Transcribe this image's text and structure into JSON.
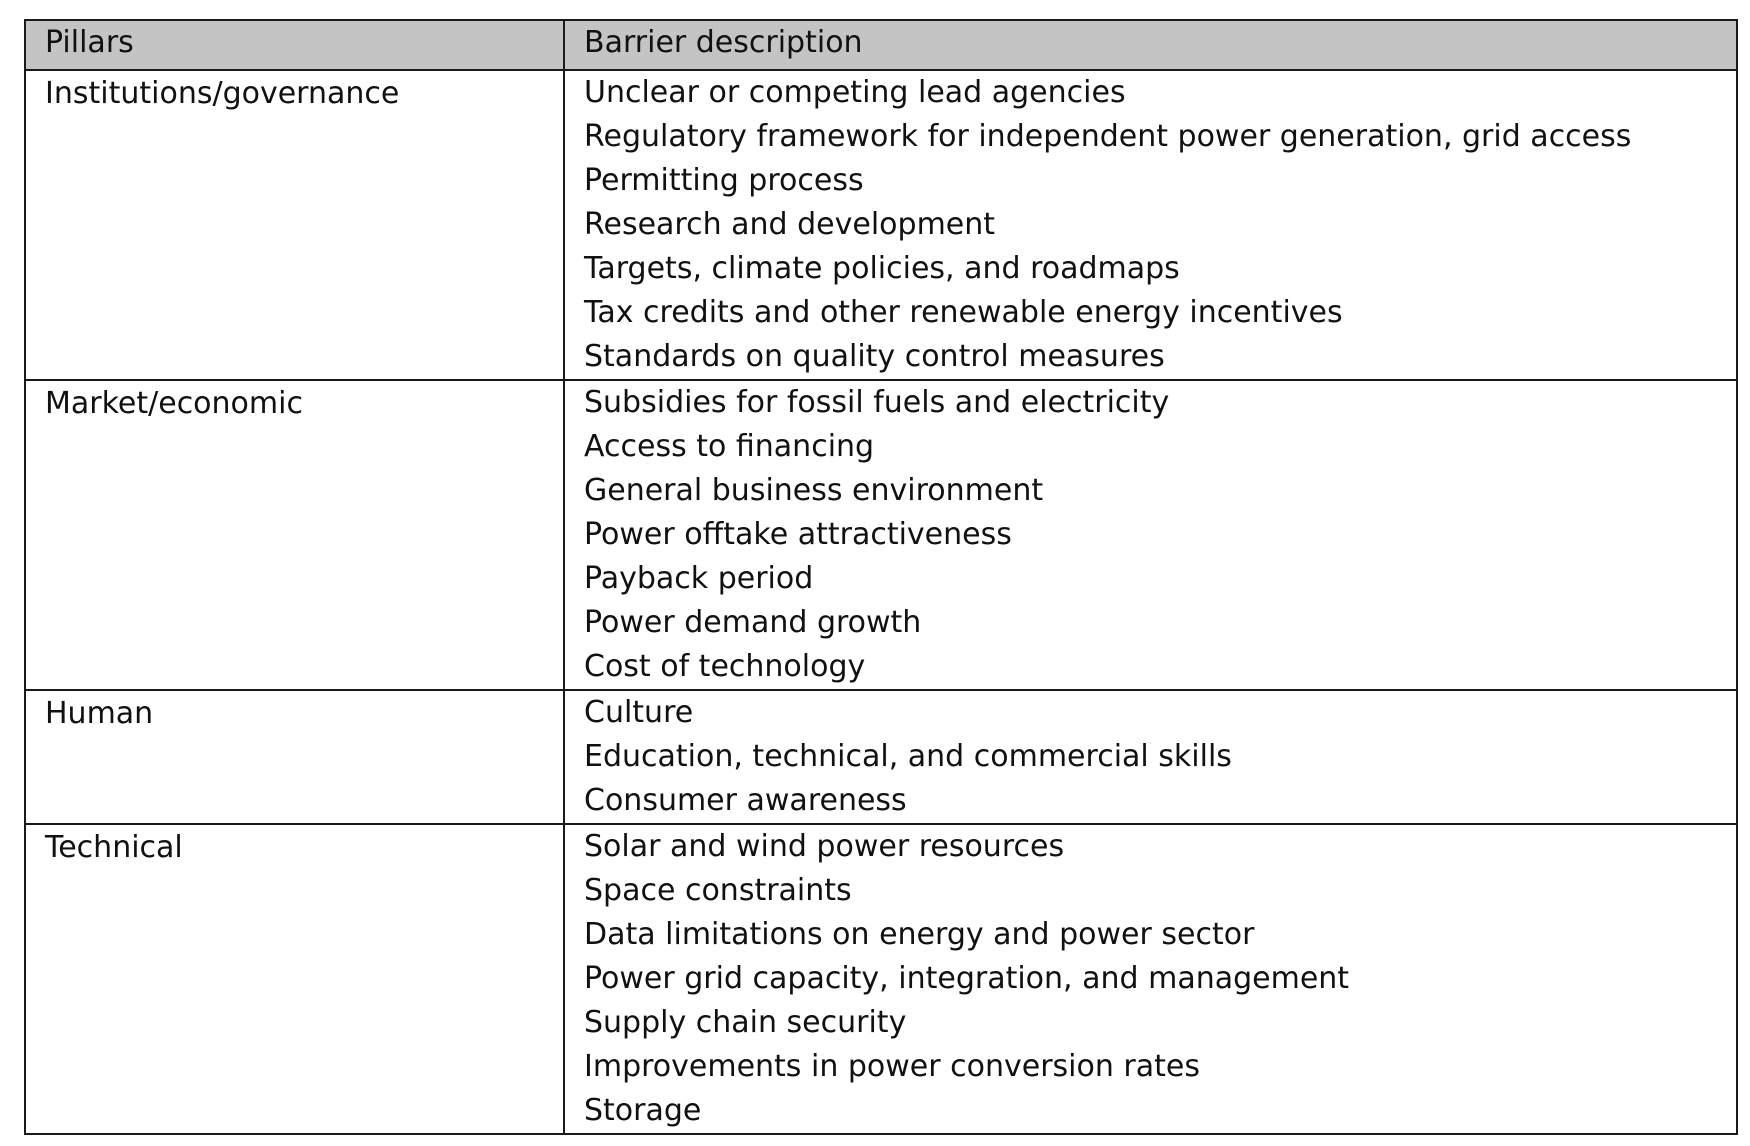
{
  "table": {
    "headers": {
      "pillar": "Pillars",
      "description": "Barrier description"
    },
    "rows": [
      {
        "pillar": "Institutions/governance",
        "barriers": [
          "Unclear or competing lead agencies",
          "Regulatory framework for independent power generation, grid access",
          "Permitting process",
          "Research and development",
          "Targets, climate policies, and roadmaps",
          "Tax credits and other renewable energy incentives",
          "Standards on quality control measures"
        ]
      },
      {
        "pillar": "Market/economic",
        "barriers": [
          "Subsidies for fossil fuels and electricity",
          "Access to financing",
          "General business environment",
          "Power offtake attractiveness",
          "Payback period",
          "Power demand growth",
          "Cost of technology"
        ]
      },
      {
        "pillar": "Human",
        "barriers": [
          "Culture",
          "Education, technical, and commercial skills",
          "Consumer awareness"
        ]
      },
      {
        "pillar": "Technical",
        "barriers": [
          "Solar and wind power resources",
          "Space constraints",
          "Data limitations on energy and power sector",
          "Power grid capacity, integration, and management",
          "Supply chain security",
          "Improvements in power conversion rates",
          "Storage"
        ]
      }
    ]
  }
}
